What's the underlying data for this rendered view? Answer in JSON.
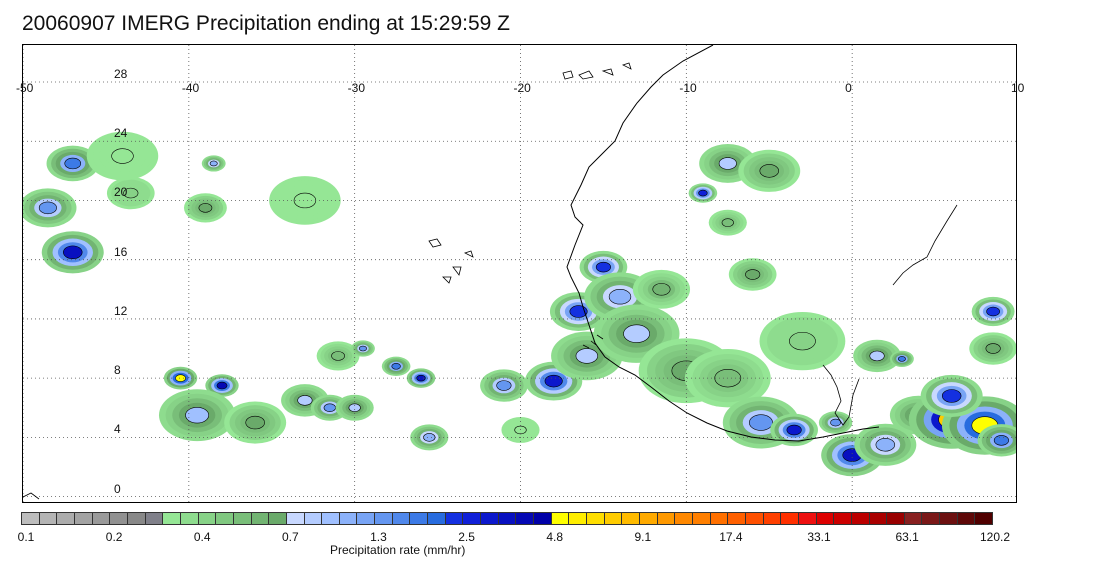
{
  "title": "20060907 IMERG Precipitation ending at 15:29:59 Z",
  "map": {
    "lon_labels": [
      "-50",
      "-40",
      "-30",
      "-20",
      "-10",
      "0",
      "10"
    ],
    "lat_labels": [
      "28",
      "24",
      "20",
      "16",
      "12",
      "8",
      "4",
      "0"
    ],
    "grid": "dotted",
    "coastline_color": "#000000",
    "precip_cells": [
      {
        "lon": -47,
        "lat": 22.5,
        "level": 22,
        "spread": 1.1
      },
      {
        "lon": -48.5,
        "lat": 19.5,
        "level": 20,
        "spread": 1.2
      },
      {
        "lon": -47,
        "lat": 16.5,
        "level": 27,
        "spread": 1.3
      },
      {
        "lon": -43.5,
        "lat": 20.5,
        "level": 10,
        "spread": 1.0
      },
      {
        "lon": -39,
        "lat": 19.5,
        "level": 14,
        "spread": 0.9
      },
      {
        "lon": -38.5,
        "lat": 22.5,
        "level": 18,
        "spread": 0.5
      },
      {
        "lon": -40.5,
        "lat": 8.0,
        "level": 30,
        "spread": 0.7
      },
      {
        "lon": -38,
        "lat": 7.5,
        "level": 28,
        "spread": 0.7
      },
      {
        "lon": -39.5,
        "lat": 5.5,
        "level": 17,
        "spread": 1.6
      },
      {
        "lon": -36,
        "lat": 5.0,
        "level": 14,
        "spread": 1.3
      },
      {
        "lon": -33,
        "lat": 6.5,
        "level": 16,
        "spread": 1.0
      },
      {
        "lon": -31.5,
        "lat": 6.0,
        "level": 20,
        "spread": 0.8
      },
      {
        "lon": -30,
        "lat": 6.0,
        "level": 16,
        "spread": 0.8
      },
      {
        "lon": -26,
        "lat": 8.0,
        "level": 27,
        "spread": 0.6
      },
      {
        "lon": -25.5,
        "lat": 4.0,
        "level": 18,
        "spread": 0.8
      },
      {
        "lon": -27.5,
        "lat": 8.8,
        "level": 22,
        "spread": 0.6
      },
      {
        "lon": -31,
        "lat": 9.5,
        "level": 12,
        "spread": 0.9
      },
      {
        "lon": -29.5,
        "lat": 10.0,
        "level": 20,
        "spread": 0.5
      },
      {
        "lon": -21,
        "lat": 7.5,
        "level": 20,
        "spread": 1.0
      },
      {
        "lon": -18,
        "lat": 7.8,
        "level": 26,
        "spread": 1.2
      },
      {
        "lon": -16,
        "lat": 9.5,
        "level": 16,
        "spread": 1.5
      },
      {
        "lon": -16.5,
        "lat": 12.5,
        "level": 24,
        "spread": 1.2
      },
      {
        "lon": -15,
        "lat": 15.5,
        "level": 24,
        "spread": 1.0
      },
      {
        "lon": -14,
        "lat": 13.5,
        "level": 18,
        "spread": 1.5
      },
      {
        "lon": -13,
        "lat": 11.0,
        "level": 16,
        "spread": 1.8
      },
      {
        "lon": -11.5,
        "lat": 14.0,
        "level": 13,
        "spread": 1.2
      },
      {
        "lon": -10,
        "lat": 8.5,
        "level": 14,
        "spread": 2.0
      },
      {
        "lon": -7.5,
        "lat": 8.0,
        "level": 12,
        "spread": 1.8
      },
      {
        "lon": -9,
        "lat": 20.5,
        "level": 25,
        "spread": 0.6
      },
      {
        "lon": -7.5,
        "lat": 22.5,
        "level": 16,
        "spread": 1.2
      },
      {
        "lon": -5,
        "lat": 22.0,
        "level": 14,
        "spread": 1.3
      },
      {
        "lon": -7.5,
        "lat": 18.5,
        "level": 12,
        "spread": 0.8
      },
      {
        "lon": -5.5,
        "lat": 5.0,
        "level": 20,
        "spread": 1.6
      },
      {
        "lon": -3.5,
        "lat": 4.5,
        "level": 26,
        "spread": 1.0
      },
      {
        "lon": -1,
        "lat": 5.0,
        "level": 20,
        "spread": 0.7
      },
      {
        "lon": -3,
        "lat": 10.5,
        "level": 10,
        "spread": 1.8
      },
      {
        "lon": -6,
        "lat": 15.0,
        "level": 14,
        "spread": 1.0
      },
      {
        "lon": 1.5,
        "lat": 9.5,
        "level": 16,
        "spread": 1.0
      },
      {
        "lon": 3,
        "lat": 9.3,
        "level": 22,
        "spread": 0.5
      },
      {
        "lon": 0,
        "lat": 2.8,
        "level": 27,
        "spread": 1.3
      },
      {
        "lon": 2,
        "lat": 3.5,
        "level": 18,
        "spread": 1.3
      },
      {
        "lon": 4,
        "lat": 5.5,
        "level": 16,
        "spread": 1.2
      },
      {
        "lon": 6,
        "lat": 5.2,
        "level": 33,
        "spread": 1.8
      },
      {
        "lon": 8,
        "lat": 4.8,
        "level": 30,
        "spread": 1.8
      },
      {
        "lon": 6,
        "lat": 6.8,
        "level": 24,
        "spread": 1.3
      },
      {
        "lon": 9,
        "lat": 3.8,
        "level": 22,
        "spread": 1.0
      },
      {
        "lon": 8.5,
        "lat": 12.5,
        "level": 24,
        "spread": 0.9
      },
      {
        "lon": 8.5,
        "lat": 10.0,
        "level": 14,
        "spread": 1.0
      },
      {
        "lon": -33,
        "lat": 20.0,
        "level": 8,
        "spread": 1.5
      },
      {
        "lon": -44,
        "lat": 23.0,
        "level": 8,
        "spread": 1.5
      },
      {
        "lon": -20,
        "lat": 4.5,
        "level": 8,
        "spread": 0.8
      }
    ]
  },
  "colorbar": {
    "title": "Precipitation rate (mm/hr)",
    "colors": [
      "#bdbdbd",
      "#b4b4b4",
      "#acacac",
      "#a3a3a3",
      "#9a9a9a",
      "#919191",
      "#888888",
      "#80808a",
      "#95e695",
      "#8edc8e",
      "#87d287",
      "#80c880",
      "#79be79",
      "#72b472",
      "#6aaa6a",
      "#c8d8ff",
      "#b4ccff",
      "#a0c0ff",
      "#8cb2fa",
      "#78a4f5",
      "#6496f0",
      "#5088eb",
      "#3c7ae6",
      "#286cdf",
      "#1430e0",
      "#1020d8",
      "#0c18cc",
      "#0810c0",
      "#0508b4",
      "#0000a8",
      "#ffff00",
      "#ffee00",
      "#ffde00",
      "#ffcc00",
      "#ffbb00",
      "#ffaa00",
      "#ff9900",
      "#ff8800",
      "#ff7f00",
      "#ff7000",
      "#ff6000",
      "#ff5000",
      "#ff4000",
      "#ff3000",
      "#ee1010",
      "#dd0000",
      "#cc0000",
      "#bb0000",
      "#aa0000",
      "#990000",
      "#882020",
      "#7a1818",
      "#6c1010",
      "#5e0808",
      "#500000"
    ],
    "ticks": [
      "0.1",
      "0.2",
      "0.4",
      "0.7",
      "1.3",
      "2.5",
      "4.8",
      "9.1",
      "17.4",
      "33.1",
      "63.1",
      "120.2"
    ]
  }
}
